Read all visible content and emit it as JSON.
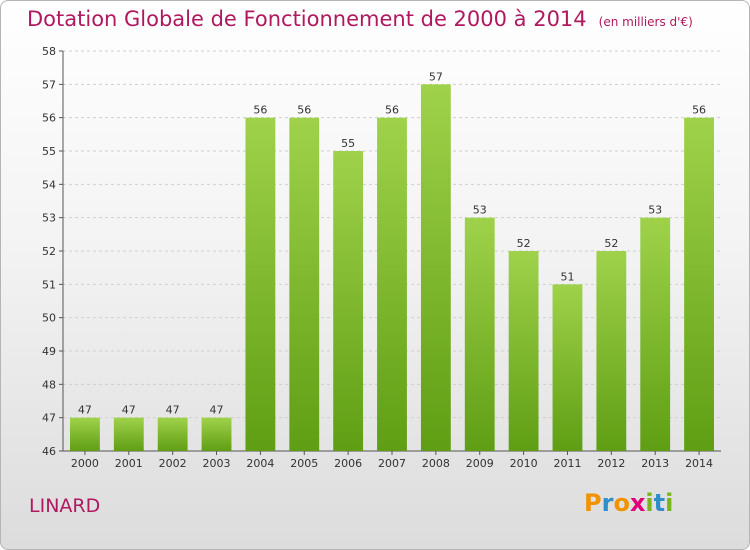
{
  "chart_data": {
    "type": "bar",
    "title": "Dotation Globale de Fonctionnement de 2000 à 2014",
    "subtitle": "(en milliers d'€)",
    "categories": [
      "2000",
      "2001",
      "2002",
      "2003",
      "2004",
      "2005",
      "2006",
      "2007",
      "2008",
      "2009",
      "2010",
      "2011",
      "2012",
      "2013",
      "2014"
    ],
    "values": [
      47,
      47,
      47,
      47,
      56,
      56,
      55,
      56,
      57,
      53,
      52,
      51,
      52,
      53,
      56
    ],
    "ylim": [
      46,
      58
    ],
    "yticks": [
      46,
      47,
      48,
      49,
      50,
      51,
      52,
      53,
      54,
      55,
      56,
      57,
      58
    ],
    "grid": true,
    "bar_color_top": "#9fd24a",
    "bar_color_bottom": "#5f9e14"
  },
  "footer": {
    "commune": "LINARD",
    "logo": [
      "P",
      "r",
      "o",
      "x",
      "i",
      "t",
      "i"
    ],
    "logo_colors": [
      "#f39200",
      "#2e8fc8",
      "#f39200",
      "#e2007a",
      "#7ab51d",
      "#2e8fc8",
      "#7ab51d"
    ]
  }
}
